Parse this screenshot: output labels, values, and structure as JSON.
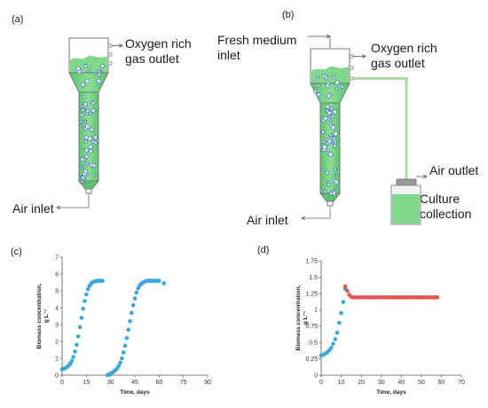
{
  "panels": {
    "a": {
      "panel_label": "(a)",
      "gas_outlet_label_line1": "Oxygen rich",
      "gas_outlet_label_line2": "gas outlet",
      "air_inlet_label": "Air inlet"
    },
    "b": {
      "panel_label": "(b)",
      "fresh_medium_label_line1": "Fresh medium",
      "fresh_medium_label_line2": "inlet",
      "gas_outlet_label_line1": "Oxygen rich",
      "gas_outlet_label_line2": "gas outlet",
      "air_outlet_label": "Air outlet",
      "culture_label_line1": "Culture",
      "culture_label_line2": "collection",
      "air_inlet_label": "Air inlet"
    },
    "c": {
      "panel_label": "(c)"
    },
    "d": {
      "panel_label": "(d)"
    }
  },
  "colors": {
    "liquid": "#6ccf7e",
    "liquid_dark": "#3fae57",
    "tube": "#a8dca0",
    "bubble": "#3f6fb5",
    "series_c": "#3aa7dc",
    "series_d_batch": "#3aa7dc",
    "series_d_continuous": "#e8534f"
  },
  "chart_data": [
    {
      "id": "c",
      "type": "scatter",
      "xlabel": "Time, days",
      "ylabel_line1": "Biomass concentration,",
      "ylabel_line2": "g L⁻¹",
      "xlim": [
        0,
        90
      ],
      "ylim": [
        0,
        7
      ],
      "xticks": [
        0,
        15,
        30,
        45,
        60,
        75,
        90
      ],
      "yticks": [
        0,
        1,
        2,
        3,
        4,
        5,
        6,
        7
      ],
      "series": [
        {
          "color": "series_c",
          "x": [
            0,
            1,
            2,
            3,
            4,
            5,
            6,
            7,
            8,
            9,
            10,
            11,
            12,
            13,
            14,
            15,
            16,
            17,
            18,
            19,
            20,
            21,
            22,
            23,
            24,
            25,
            28,
            29,
            30,
            31,
            32,
            33,
            34,
            35,
            36,
            37,
            38,
            39,
            40,
            41,
            42,
            43,
            44,
            45,
            46,
            47,
            48,
            49,
            50,
            51,
            52,
            53,
            54,
            55,
            56,
            57,
            58,
            59,
            60,
            63
          ],
          "y": [
            0.35,
            0.38,
            0.42,
            0.48,
            0.56,
            0.68,
            0.85,
            1.08,
            1.4,
            1.8,
            2.3,
            2.85,
            3.4,
            3.95,
            4.4,
            4.8,
            5.1,
            5.3,
            5.45,
            5.52,
            5.56,
            5.58,
            5.6,
            5.6,
            5.6,
            5.6,
            0.0,
            0.05,
            0.1,
            0.15,
            0.22,
            0.3,
            0.4,
            0.55,
            0.75,
            1.0,
            1.35,
            1.75,
            2.2,
            2.7,
            3.2,
            3.7,
            4.15,
            4.55,
            4.9,
            5.15,
            5.32,
            5.43,
            5.5,
            5.55,
            5.58,
            5.6,
            5.6,
            5.6,
            5.6,
            5.6,
            5.6,
            5.6,
            5.6,
            5.45
          ]
        }
      ]
    },
    {
      "id": "d",
      "type": "scatter",
      "xlabel": "Time, days",
      "ylabel_line1": "Biomass concentration,",
      "ylabel_line2": "g L⁻¹",
      "xlim": [
        0,
        70
      ],
      "ylim": [
        0,
        1.75
      ],
      "xticks": [
        0,
        10,
        20,
        30,
        40,
        50,
        60,
        70
      ],
      "yticks": [
        0,
        0.25,
        0.5,
        0.75,
        1,
        1.25,
        1.5,
        1.75
      ],
      "ytick_labels": [
        "0",
        "0.25",
        "0.5",
        "0.75",
        "1",
        "1.25",
        "1.5",
        "1.75"
      ],
      "series": [
        {
          "color": "series_d_batch",
          "x": [
            0,
            1,
            2,
            3,
            4,
            5,
            6,
            7,
            8,
            9,
            10,
            11,
            12
          ],
          "y": [
            0.3,
            0.31,
            0.33,
            0.35,
            0.38,
            0.42,
            0.48,
            0.55,
            0.65,
            0.8,
            0.95,
            1.12,
            1.32
          ]
        },
        {
          "color": "series_d_continuous",
          "x": [
            12,
            13,
            14,
            15,
            16,
            17,
            18,
            19,
            20,
            21,
            22,
            23,
            24,
            25,
            26,
            27,
            28,
            29,
            30,
            31,
            32,
            33,
            34,
            35,
            36,
            37,
            38,
            39,
            40,
            41,
            42,
            43,
            44,
            45,
            46,
            47,
            48,
            49,
            50,
            51,
            52,
            53,
            54,
            55,
            56,
            57,
            58
          ],
          "y": [
            1.36,
            1.29,
            1.23,
            1.2,
            1.19,
            1.19,
            1.19,
            1.19,
            1.19,
            1.19,
            1.19,
            1.19,
            1.19,
            1.19,
            1.19,
            1.19,
            1.19,
            1.19,
            1.19,
            1.19,
            1.19,
            1.19,
            1.19,
            1.19,
            1.19,
            1.19,
            1.19,
            1.19,
            1.19,
            1.19,
            1.19,
            1.19,
            1.19,
            1.19,
            1.19,
            1.19,
            1.19,
            1.19,
            1.19,
            1.19,
            1.19,
            1.19,
            1.19,
            1.19,
            1.19,
            1.19,
            1.19
          ]
        }
      ]
    }
  ]
}
